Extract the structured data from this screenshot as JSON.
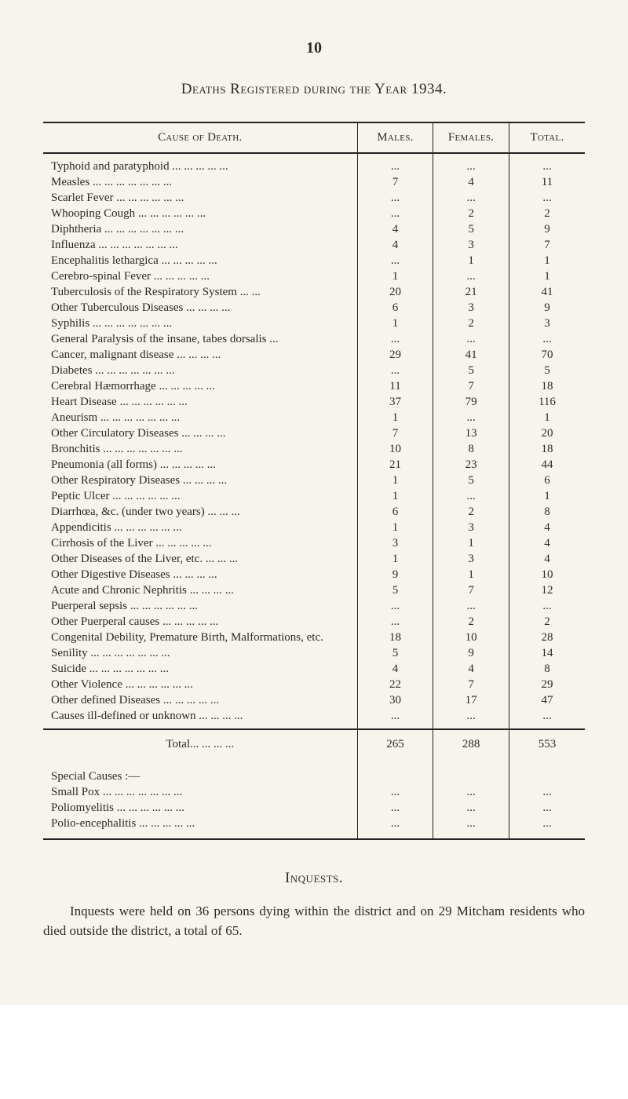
{
  "page_number": "10",
  "title": "Deaths Registered during the Year 1934.",
  "table": {
    "headers": {
      "cause": "Cause of Death.",
      "males": "Males.",
      "females": "Females.",
      "total": "Total."
    },
    "rows": [
      {
        "label": "Typhoid and paratyphoid",
        "m": "...",
        "f": "...",
        "t": "..."
      },
      {
        "label": "Measles",
        "m": "7",
        "f": "4",
        "t": "11"
      },
      {
        "label": "Scarlet Fever",
        "m": "...",
        "f": "...",
        "t": "..."
      },
      {
        "label": "Whooping Cough",
        "m": "...",
        "f": "2",
        "t": "2"
      },
      {
        "label": "Diphtheria",
        "m": "4",
        "f": "5",
        "t": "9"
      },
      {
        "label": "Influenza",
        "m": "4",
        "f": "3",
        "t": "7"
      },
      {
        "label": "Encephalitis lethargica",
        "m": "...",
        "f": "1",
        "t": "1"
      },
      {
        "label": "Cerebro-spinal Fever",
        "m": "1",
        "f": "...",
        "t": "1"
      },
      {
        "label": "Tuberculosis of the Respiratory System",
        "m": "20",
        "f": "21",
        "t": "41"
      },
      {
        "label": "Other Tuberculous Diseases",
        "m": "6",
        "f": "3",
        "t": "9"
      },
      {
        "label": "Syphilis",
        "m": "1",
        "f": "2",
        "t": "3"
      },
      {
        "label": "General Paralysis of the insane, tabes dorsalis",
        "m": "...",
        "f": "...",
        "t": "..."
      },
      {
        "label": "Cancer, malignant disease",
        "m": "29",
        "f": "41",
        "t": "70"
      },
      {
        "label": "Diabetes",
        "m": "...",
        "f": "5",
        "t": "5"
      },
      {
        "label": "Cerebral Hæmorrhage",
        "m": "11",
        "f": "7",
        "t": "18"
      },
      {
        "label": "Heart Disease",
        "m": "37",
        "f": "79",
        "t": "116"
      },
      {
        "label": "Aneurism",
        "m": "1",
        "f": "...",
        "t": "1"
      },
      {
        "label": "Other Circulatory Diseases",
        "m": "7",
        "f": "13",
        "t": "20"
      },
      {
        "label": "Bronchitis",
        "m": "10",
        "f": "8",
        "t": "18"
      },
      {
        "label": "Pneumonia (all forms)",
        "m": "21",
        "f": "23",
        "t": "44"
      },
      {
        "label": "Other Respiratory Diseases",
        "m": "1",
        "f": "5",
        "t": "6"
      },
      {
        "label": "Peptic Ulcer",
        "m": "1",
        "f": "...",
        "t": "1"
      },
      {
        "label": "Diarrhœa, &c. (under two years)",
        "m": "6",
        "f": "2",
        "t": "8"
      },
      {
        "label": "Appendicitis",
        "m": "1",
        "f": "3",
        "t": "4"
      },
      {
        "label": "Cirrhosis of the Liver",
        "m": "3",
        "f": "1",
        "t": "4"
      },
      {
        "label": "Other Diseases of the Liver, etc.",
        "m": "1",
        "f": "3",
        "t": "4"
      },
      {
        "label": "Other Digestive Diseases",
        "m": "9",
        "f": "1",
        "t": "10"
      },
      {
        "label": "Acute and Chronic Nephritis",
        "m": "5",
        "f": "7",
        "t": "12"
      },
      {
        "label": "Puerperal sepsis",
        "m": "...",
        "f": "...",
        "t": "..."
      },
      {
        "label": "Other Puerperal causes",
        "m": "...",
        "f": "2",
        "t": "2"
      },
      {
        "label": "Congenital Debility, Premature Birth, Malformations, etc.",
        "m": "18",
        "f": "10",
        "t": "28"
      },
      {
        "label": "Senility",
        "m": "5",
        "f": "9",
        "t": "14"
      },
      {
        "label": "Suicide",
        "m": "4",
        "f": "4",
        "t": "8"
      },
      {
        "label": "Other Violence",
        "m": "22",
        "f": "7",
        "t": "29"
      },
      {
        "label": "Other defined Diseases",
        "m": "30",
        "f": "17",
        "t": "47"
      },
      {
        "label": "Causes ill-defined or unknown",
        "m": "...",
        "f": "...",
        "t": "..."
      }
    ],
    "total": {
      "label": "Total",
      "m": "265",
      "f": "288",
      "t": "553"
    },
    "special": {
      "head": "Special Causes :—",
      "rows": [
        {
          "label": "Small Pox",
          "m": "...",
          "f": "...",
          "t": "..."
        },
        {
          "label": "Poliomyelitis",
          "m": "...",
          "f": "...",
          "t": "..."
        },
        {
          "label": "Polio-encephalitis",
          "m": "...",
          "f": "...",
          "t": "..."
        }
      ]
    }
  },
  "inquests": {
    "head": "Inquests.",
    "body": "Inquests were held on 36 persons dying within the district and on 29 Mitcham residents who died outside the district, a total of 65."
  },
  "style": {
    "background": "#f6f4ec",
    "text": "#2a2a28",
    "rule": "#222222",
    "body_fontsize": 15,
    "heading_fontsize": 19
  }
}
